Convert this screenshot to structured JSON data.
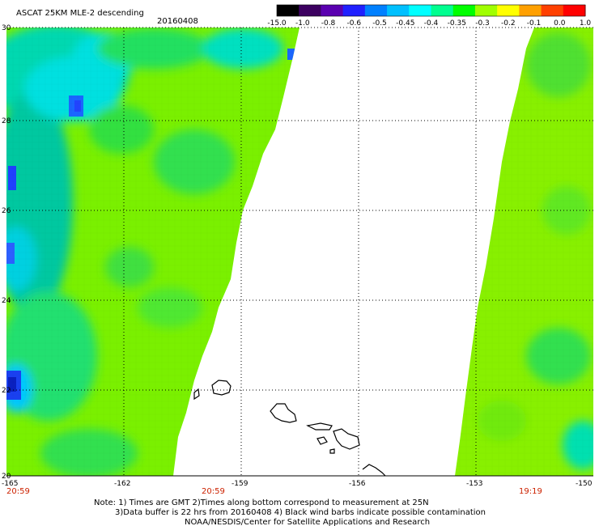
{
  "header": {
    "title": "ASCAT 25KM MLE-2 descending",
    "date": "20160408"
  },
  "colorbar": {
    "labels": [
      "-15.0",
      "-1.0",
      "-0.8",
      "-0.6",
      "-0.5",
      "-0.45",
      "-0.4",
      "-0.35",
      "-0.3",
      "-0.2",
      "-0.1",
      "0.0",
      "1.0"
    ],
    "colors": [
      "#000000",
      "#3c0060",
      "#5a00b0",
      "#2020ff",
      "#0080ff",
      "#00c0ff",
      "#00ffff",
      "#00ff90",
      "#00ff00",
      "#a0ff00",
      "#ffff00",
      "#ffa000",
      "#ff4000",
      "#ff0000"
    ]
  },
  "map": {
    "lon_range": [
      -165,
      -150
    ],
    "lat_range": [
      20,
      30
    ],
    "lat_labels": [
      "30",
      "28",
      "26",
      "24",
      "22",
      "20"
    ],
    "lon_labels": [
      "-165",
      "-162",
      "-159",
      "-156",
      "-153",
      "-150"
    ],
    "swath_times": [
      "20:59",
      "20:59",
      "19:19"
    ],
    "fill_colors": {
      "green": "#22ee22",
      "lime": "#99ff00",
      "cyan": "#00eeee",
      "blue": "#1844ff"
    }
  },
  "footer": {
    "line1": "Note: 1) Times are GMT 2)Times along bottom correspond to measurement at 25N",
    "line2": "3)Data buffer is 22 hrs from 20160408 4) Black wind barbs indicate possible contamination",
    "line3": "NOAA/NESDIS/Center for Satellite Applications and Research"
  }
}
